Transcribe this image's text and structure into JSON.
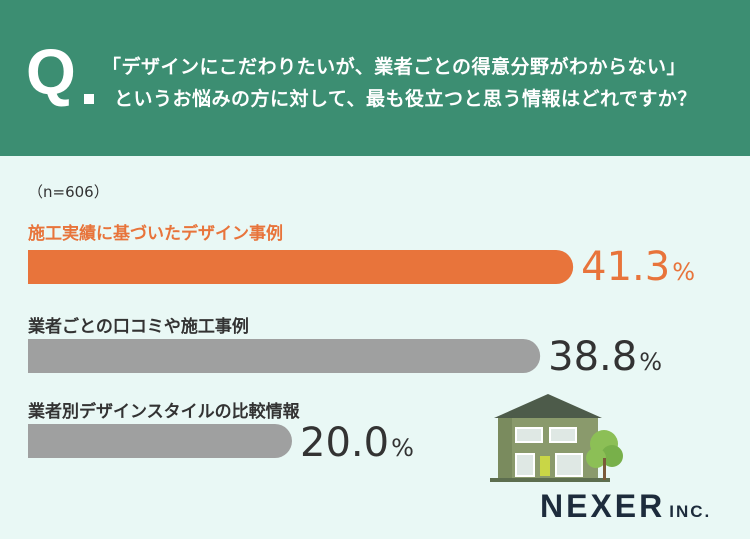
{
  "question": {
    "mark": "Q",
    "line1": "「デザインにこだわりたいが、業者ごとの得意分野がわからない」",
    "line2": "というお悩みの方に対して、最も役立つと思う情報はどれですか？"
  },
  "sample_size": "（n=606）",
  "logo": {
    "main": "NEXER",
    "sub": "INC."
  },
  "colors": {
    "header": "#3c8e72",
    "background": "#e9f8f5",
    "highlight": "#e8743b",
    "bar": "#9fa0a0",
    "text": "#333333"
  },
  "chart_data": {
    "type": "bar",
    "orientation": "horizontal",
    "categories": [
      "施工実績に基づいたデザイン事例",
      "業者ごとの口コミや施工事例",
      "業者別デザインスタイルの比較情報"
    ],
    "values": [
      41.3,
      38.8,
      20.0
    ],
    "value_labels": [
      "41.3",
      "38.8",
      "20.0"
    ],
    "unit": "%",
    "highlight_index": 0
  }
}
